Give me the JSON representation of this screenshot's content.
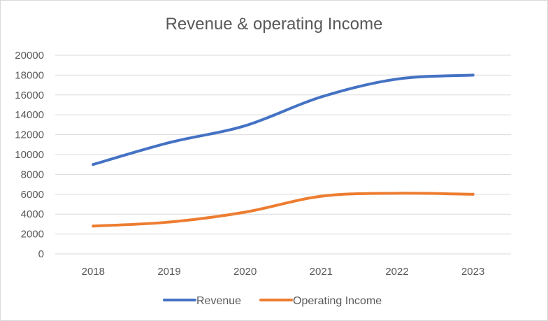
{
  "chart_data": {
    "type": "line",
    "title": "Revenue & operating Income",
    "categories": [
      "2018",
      "2019",
      "2020",
      "2021",
      "2022",
      "2023"
    ],
    "series": [
      {
        "name": "Revenue",
        "color": "#4472C4",
        "values": [
          9000,
          11200,
          12900,
          15800,
          17600,
          18000
        ]
      },
      {
        "name": "Operating Income",
        "color": "#ED7D31",
        "values": [
          2800,
          3200,
          4200,
          5800,
          6100,
          6000
        ]
      }
    ],
    "ylim": [
      0,
      20000
    ],
    "yticks": [
      "0",
      "2000",
      "4000",
      "6000",
      "8000",
      "10000",
      "12000",
      "14000",
      "16000",
      "18000",
      "20000"
    ],
    "grid": true,
    "legend": "bottom"
  }
}
